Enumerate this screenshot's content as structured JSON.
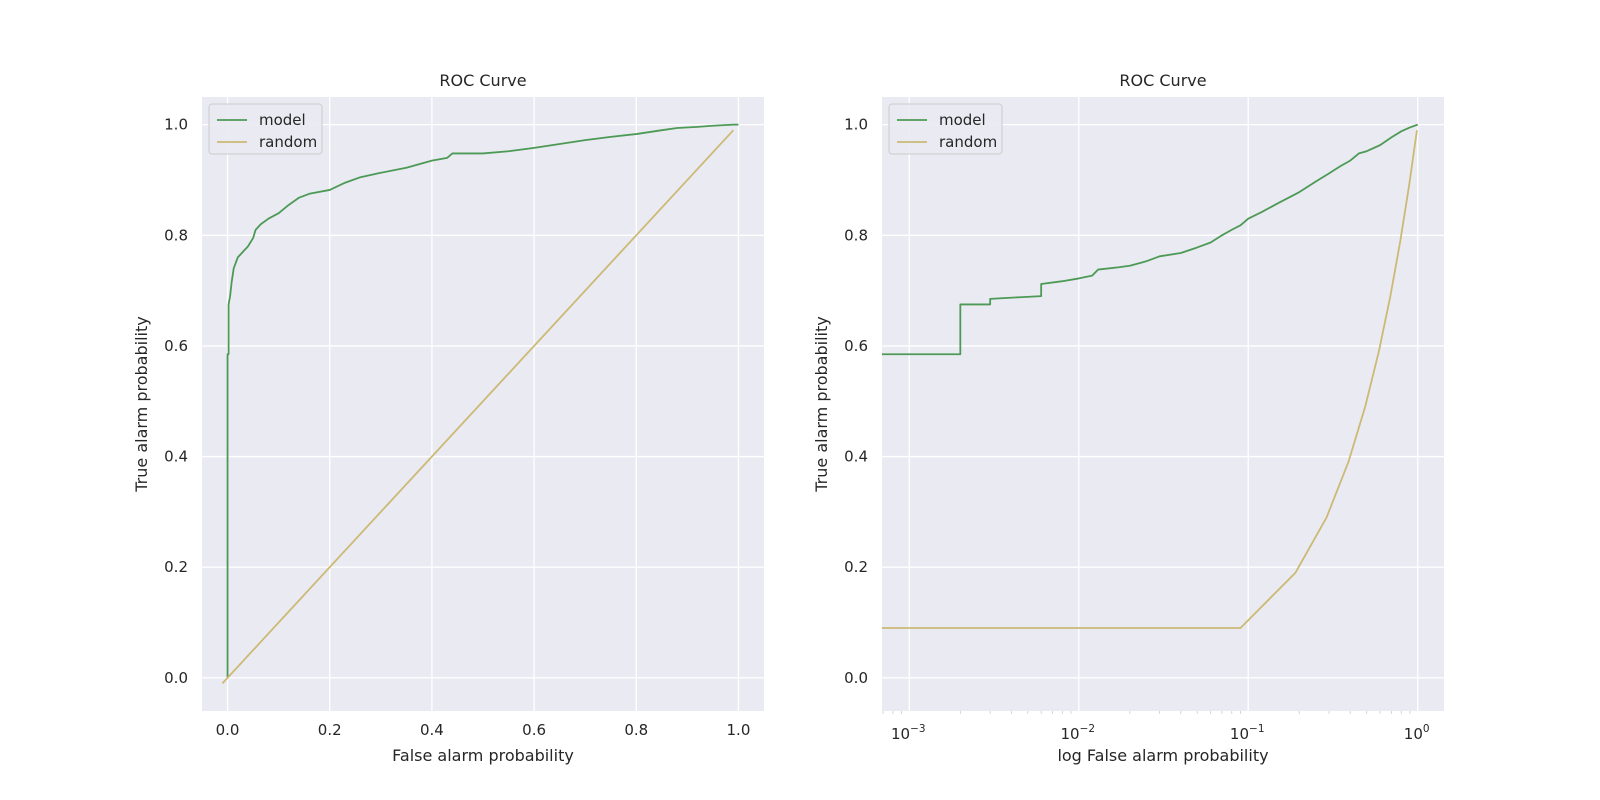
{
  "chart_data": [
    {
      "type": "line",
      "title": "ROC Curve",
      "xlabel": "False alarm probability",
      "ylabel": "True alarm probability",
      "x_scale": "linear",
      "xlim": [
        -0.05,
        1.05
      ],
      "ylim": [
        -0.06,
        1.05
      ],
      "x_ticks": [
        0.0,
        0.2,
        0.4,
        0.6,
        0.8,
        1.0
      ],
      "x_tick_labels": [
        "0.0",
        "0.2",
        "0.4",
        "0.6",
        "0.8",
        "1.0"
      ],
      "y_ticks": [
        0.0,
        0.2,
        0.4,
        0.6,
        0.8,
        1.0
      ],
      "y_tick_labels": [
        "0.0",
        "0.2",
        "0.4",
        "0.6",
        "0.8",
        "1.0"
      ],
      "grid": true,
      "legend": "top-left",
      "series": [
        {
          "name": "model",
          "color": "#4c9a55",
          "points": [
            [
              0.0,
              0.0
            ],
            [
              0.0,
              0.585
            ],
            [
              0.002,
              0.585
            ],
            [
              0.002,
              0.675
            ],
            [
              0.005,
              0.69
            ],
            [
              0.008,
              0.715
            ],
            [
              0.012,
              0.74
            ],
            [
              0.02,
              0.76
            ],
            [
              0.03,
              0.77
            ],
            [
              0.04,
              0.78
            ],
            [
              0.05,
              0.795
            ],
            [
              0.055,
              0.81
            ],
            [
              0.065,
              0.82
            ],
            [
              0.08,
              0.83
            ],
            [
              0.1,
              0.84
            ],
            [
              0.12,
              0.855
            ],
            [
              0.14,
              0.868
            ],
            [
              0.16,
              0.875
            ],
            [
              0.2,
              0.882
            ],
            [
              0.23,
              0.895
            ],
            [
              0.26,
              0.905
            ],
            [
              0.3,
              0.913
            ],
            [
              0.35,
              0.922
            ],
            [
              0.4,
              0.935
            ],
            [
              0.43,
              0.94
            ],
            [
              0.44,
              0.948
            ],
            [
              0.5,
              0.948
            ],
            [
              0.55,
              0.952
            ],
            [
              0.6,
              0.958
            ],
            [
              0.65,
              0.965
            ],
            [
              0.7,
              0.972
            ],
            [
              0.75,
              0.978
            ],
            [
              0.8,
              0.983
            ],
            [
              0.85,
              0.99
            ],
            [
              0.88,
              0.994
            ],
            [
              0.92,
              0.996
            ],
            [
              0.95,
              0.998
            ],
            [
              0.99,
              1.0
            ],
            [
              1.0,
              1.0
            ]
          ]
        },
        {
          "name": "random",
          "color": "#ccb974",
          "points": [
            [
              -0.01,
              -0.01
            ],
            [
              0.99,
              0.99
            ]
          ]
        }
      ]
    },
    {
      "type": "line",
      "title": "ROC Curve",
      "xlabel": "log False alarm probability",
      "ylabel": "True alarm probability",
      "x_scale": "log",
      "xlim": [
        0.00069,
        1.43
      ],
      "ylim": [
        -0.06,
        1.05
      ],
      "x_ticks": [
        0.001,
        0.01,
        0.1,
        1
      ],
      "x_tick_labels": [
        {
          "base": "10",
          "exp": "−3"
        },
        {
          "base": "10",
          "exp": "−2"
        },
        {
          "base": "10",
          "exp": "−1"
        },
        {
          "base": "10",
          "exp": "0"
        }
      ],
      "y_ticks": [
        0.0,
        0.2,
        0.4,
        0.6,
        0.8,
        1.0
      ],
      "y_tick_labels": [
        "0.0",
        "0.2",
        "0.4",
        "0.6",
        "0.8",
        "1.0"
      ],
      "grid": true,
      "legend": "top-left",
      "series": [
        {
          "name": "model",
          "color": "#4c9a55",
          "points": [
            [
              0.00069,
              0.585
            ],
            [
              0.002,
              0.585
            ],
            [
              0.002,
              0.675
            ],
            [
              0.003,
              0.675
            ],
            [
              0.003,
              0.685
            ],
            [
              0.0045,
              0.688
            ],
            [
              0.006,
              0.69
            ],
            [
              0.006,
              0.712
            ],
            [
              0.008,
              0.717
            ],
            [
              0.01,
              0.722
            ],
            [
              0.012,
              0.727
            ],
            [
              0.013,
              0.738
            ],
            [
              0.017,
              0.742
            ],
            [
              0.02,
              0.745
            ],
            [
              0.025,
              0.753
            ],
            [
              0.03,
              0.762
            ],
            [
              0.04,
              0.768
            ],
            [
              0.05,
              0.778
            ],
            [
              0.06,
              0.787
            ],
            [
              0.07,
              0.8
            ],
            [
              0.08,
              0.81
            ],
            [
              0.09,
              0.818
            ],
            [
              0.1,
              0.83
            ],
            [
              0.12,
              0.842
            ],
            [
              0.15,
              0.858
            ],
            [
              0.2,
              0.878
            ],
            [
              0.25,
              0.897
            ],
            [
              0.3,
              0.912
            ],
            [
              0.35,
              0.925
            ],
            [
              0.4,
              0.935
            ],
            [
              0.45,
              0.948
            ],
            [
              0.5,
              0.952
            ],
            [
              0.6,
              0.963
            ],
            [
              0.7,
              0.977
            ],
            [
              0.8,
              0.988
            ],
            [
              0.9,
              0.995
            ],
            [
              1.0,
              1.0
            ]
          ]
        },
        {
          "name": "random",
          "color": "#ccb974",
          "points": [
            [
              0.00069,
              0.09
            ],
            [
              0.09,
              0.09
            ],
            [
              0.19,
              0.19
            ],
            [
              0.29,
              0.29
            ],
            [
              0.39,
              0.39
            ],
            [
              0.49,
              0.49
            ],
            [
              0.59,
              0.59
            ],
            [
              0.69,
              0.69
            ],
            [
              0.79,
              0.79
            ],
            [
              0.89,
              0.89
            ],
            [
              0.99,
              0.99
            ]
          ]
        }
      ]
    }
  ]
}
